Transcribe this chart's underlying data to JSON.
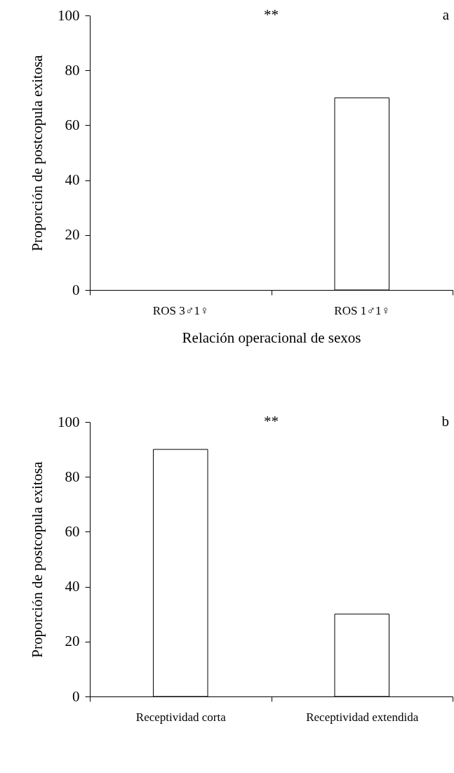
{
  "chart_data": [
    {
      "type": "bar",
      "categories": [
        "ROS 3♂1♀",
        "ROS 1♂1♀"
      ],
      "values": [
        0,
        70
      ],
      "color": "#ffffff",
      "ylabel": "Proporción de postcopula exitosa",
      "xlabel": "Relación operacional de sexos",
      "ylim": [
        0,
        100
      ],
      "yticks": [
        0,
        20,
        40,
        60,
        80,
        100
      ],
      "annotations": [
        "**",
        "a"
      ]
    },
    {
      "type": "bar",
      "categories": [
        "Receptividad corta",
        "Receptividad extendida"
      ],
      "values": [
        90,
        30
      ],
      "color": "#ffffff",
      "ylabel": "Proporción de postcopula exitosa",
      "ylim": [
        0,
        100
      ],
      "yticks": [
        0,
        20,
        40,
        60,
        80,
        100
      ],
      "annotations": [
        "**",
        "b"
      ]
    }
  ]
}
